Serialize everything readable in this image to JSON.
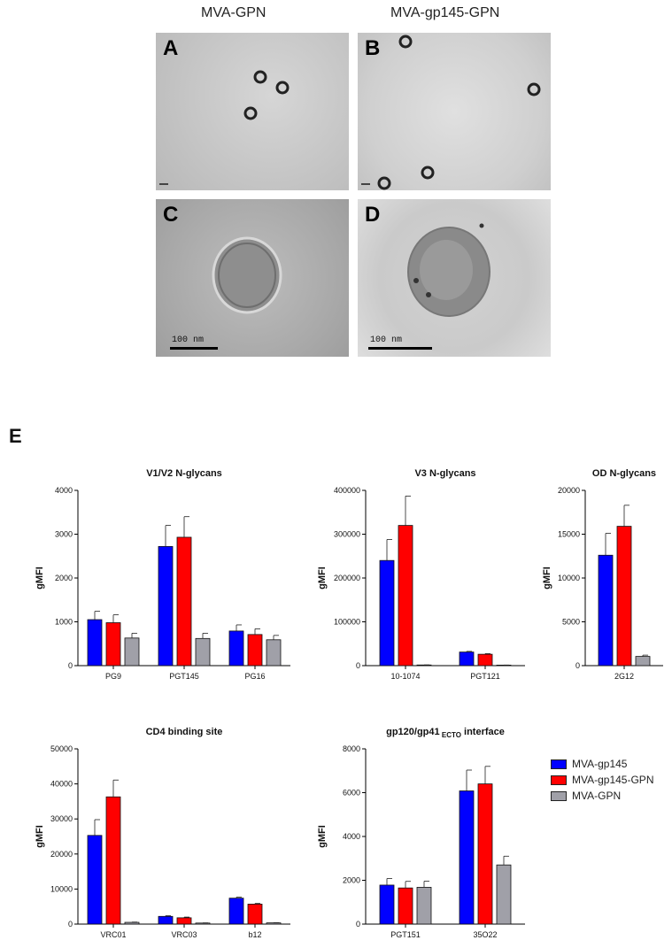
{
  "micrographs": {
    "col_left": "MVA-GPN",
    "col_right": "MVA-gp145-GPN",
    "panels": [
      {
        "letter": "A"
      },
      {
        "letter": "B"
      },
      {
        "letter": "C",
        "scale": "100 nm"
      },
      {
        "letter": "D",
        "scale": "100 nm"
      }
    ]
  },
  "panel_e_label": "E",
  "colors": {
    "MVA-gp145": "#0000ff",
    "MVA-gp145-GPN": "#ff0000",
    "MVA-GPN": "#a0a0a8"
  },
  "legend": [
    "MVA-gp145",
    "MVA-gp145-GPN",
    "MVA-GPN"
  ],
  "chart_data": [
    {
      "type": "bar",
      "title": "V1/V2 N-glycans",
      "ylabel": "gMFI",
      "ylim": [
        0,
        4000
      ],
      "yticks": [
        "0",
        "1000",
        "2000",
        "3000",
        "4000"
      ],
      "categories": [
        "PG9",
        "PGT145",
        "PG16"
      ],
      "series": [
        {
          "name": "MVA-gp145",
          "values": [
            1050,
            2720,
            790
          ],
          "errors": [
            190,
            480,
            140
          ]
        },
        {
          "name": "MVA-gp145-GPN",
          "values": [
            980,
            2930,
            710
          ],
          "errors": [
            180,
            470,
            130
          ]
        },
        {
          "name": "MVA-GPN",
          "values": [
            630,
            620,
            590
          ],
          "errors": [
            110,
            120,
            100
          ]
        }
      ]
    },
    {
      "type": "bar",
      "title": "V3 N-glycans",
      "ylabel": "gMFI",
      "ylim": [
        0,
        400000
      ],
      "yticks": [
        "0",
        "100000",
        "200000",
        "300000",
        "400000"
      ],
      "categories": [
        "10-1074",
        "PGT121"
      ],
      "series": [
        {
          "name": "MVA-gp145",
          "values": [
            240000,
            31000
          ],
          "errors": [
            48000,
            1500
          ]
        },
        {
          "name": "MVA-gp145-GPN",
          "values": [
            320000,
            26000
          ],
          "errors": [
            67000,
            1500
          ]
        },
        {
          "name": "MVA-GPN",
          "values": [
            1500,
            1200
          ],
          "errors": [
            200,
            200
          ]
        }
      ]
    },
    {
      "type": "bar",
      "title": "OD N-glycans",
      "ylabel": "gMFI",
      "ylim": [
        0,
        20000
      ],
      "yticks": [
        "0",
        "5000",
        "10000",
        "15000",
        "20000"
      ],
      "categories": [
        "2G12"
      ],
      "series": [
        {
          "name": "MVA-gp145",
          "values": [
            12600
          ],
          "errors": [
            2500
          ]
        },
        {
          "name": "MVA-gp145-GPN",
          "values": [
            15900
          ],
          "errors": [
            2400
          ]
        },
        {
          "name": "MVA-GPN",
          "values": [
            1050
          ],
          "errors": [
            150
          ]
        }
      ]
    },
    {
      "type": "bar",
      "title": "CD4 binding site",
      "ylabel": "gMFI",
      "ylim": [
        0,
        50000
      ],
      "yticks": [
        "0",
        "10000",
        "20000",
        "30000",
        "40000",
        "50000"
      ],
      "categories": [
        "VRC01",
        "VRC03",
        "b12"
      ],
      "series": [
        {
          "name": "MVA-gp145",
          "values": [
            25300,
            2200,
            7400
          ],
          "errors": [
            4500,
            200,
            300
          ]
        },
        {
          "name": "MVA-gp145-GPN",
          "values": [
            36300,
            1800,
            5700
          ],
          "errors": [
            4800,
            200,
            200
          ]
        },
        {
          "name": "MVA-GPN",
          "values": [
            500,
            300,
            350
          ],
          "errors": [
            80,
            50,
            50
          ]
        }
      ]
    },
    {
      "type": "bar",
      "title": "gp120/gp41",
      "title_sub": "ECTO",
      "title_tail": " interface",
      "ylabel": "gMFI",
      "ylim": [
        0,
        8000
      ],
      "yticks": [
        "0",
        "2000",
        "4000",
        "6000",
        "8000"
      ],
      "categories": [
        "PGT151",
        "35O22"
      ],
      "series": [
        {
          "name": "MVA-gp145",
          "values": [
            1780,
            6080
          ],
          "errors": [
            300,
            950
          ]
        },
        {
          "name": "MVA-gp145-GPN",
          "values": [
            1650,
            6400
          ],
          "errors": [
            300,
            800
          ]
        },
        {
          "name": "MVA-GPN",
          "values": [
            1680,
            2700
          ],
          "errors": [
            280,
            400
          ]
        }
      ]
    }
  ]
}
